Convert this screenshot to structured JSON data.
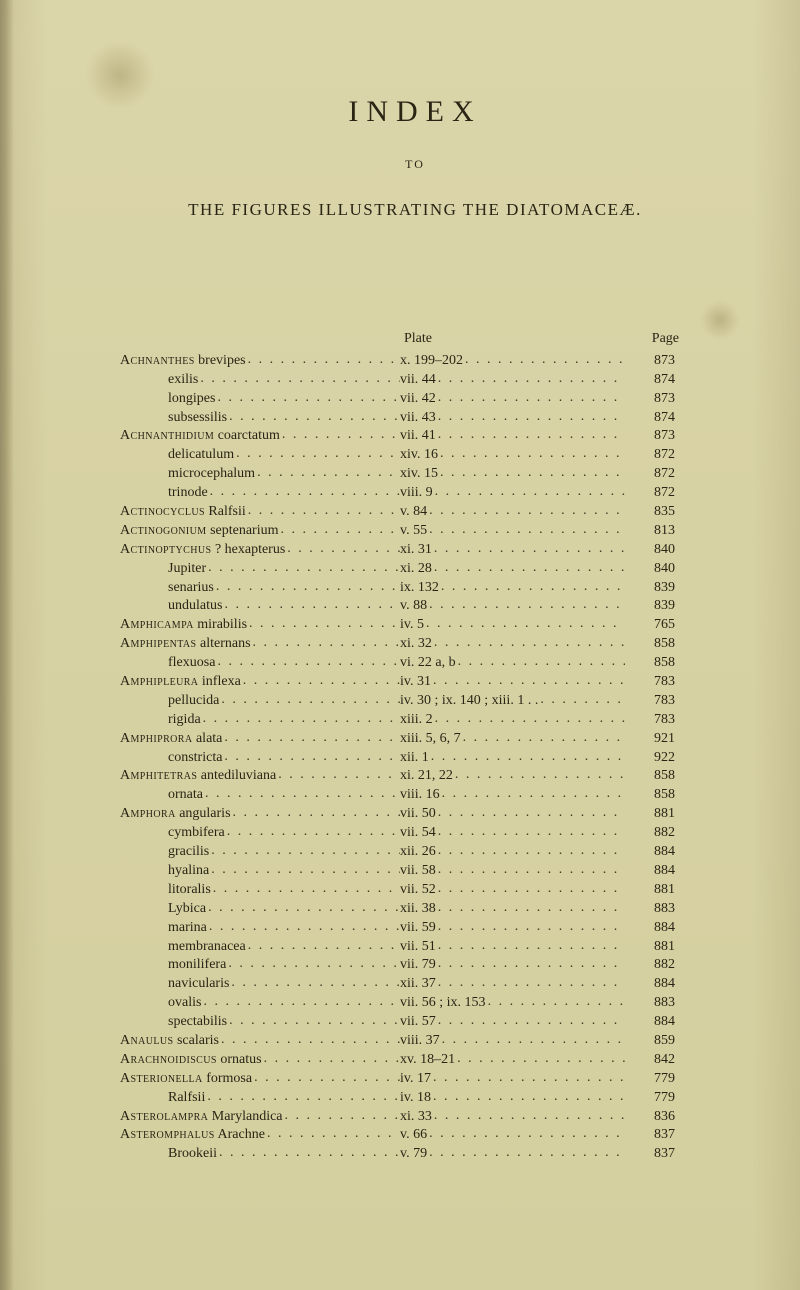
{
  "title": "INDEX",
  "to": "TO",
  "subtitle": "THE FIGURES ILLUSTRATING THE DIATOMACEÆ.",
  "headers": {
    "plate": "Plate",
    "page": "Page"
  },
  "entries": [
    {
      "name": "Achnanthes brevipes",
      "genus": true,
      "indent": 0,
      "plate": "x. 199–202",
      "page": "873"
    },
    {
      "name": "exilis",
      "indent": 1,
      "plate": "vii. 44",
      "page": "874"
    },
    {
      "name": "longipes",
      "indent": 1,
      "plate": "vii. 42",
      "page": "873"
    },
    {
      "name": "subsessilis",
      "indent": 1,
      "plate": "vii. 43",
      "page": "874"
    },
    {
      "name": "Achnanthidium coarctatum",
      "genus": true,
      "indent": 0,
      "plate": "vii. 41",
      "page": "873"
    },
    {
      "name": "delicatulum",
      "indent": 1,
      "plate": "xiv. 16",
      "page": "872"
    },
    {
      "name": "microcephalum",
      "indent": 1,
      "plate": "xiv. 15",
      "page": "872"
    },
    {
      "name": "trinode",
      "indent": 1,
      "plate": "viii. 9",
      "page": "872"
    },
    {
      "name": "Actinocyclus Ralfsii",
      "genus": true,
      "indent": 0,
      "plate": "v. 84",
      "page": "835"
    },
    {
      "name": "Actinogonium septenarium",
      "genus": true,
      "indent": 0,
      "plate": "v. 55",
      "page": "813"
    },
    {
      "name": "Actinoptychus ? hexapterus",
      "genus": true,
      "indent": 0,
      "plate": "xi. 31",
      "page": "840"
    },
    {
      "name": "Jupiter",
      "indent": 1,
      "plate": "xi. 28",
      "page": "840"
    },
    {
      "name": "senarius",
      "indent": 1,
      "plate": "ix. 132",
      "page": "839"
    },
    {
      "name": "undulatus",
      "indent": 1,
      "plate": "v. 88",
      "page": "839"
    },
    {
      "name": "Amphicampa mirabilis",
      "genus": true,
      "indent": 0,
      "plate": "iv. 5",
      "page": "765"
    },
    {
      "name": "Amphipentas alternans",
      "genus": true,
      "indent": 0,
      "plate": "xi. 32",
      "page": "858"
    },
    {
      "name": "flexuosa",
      "indent": 1,
      "plate": "vi. 22 a, b",
      "page": "858"
    },
    {
      "name": "Amphipleura inflexa",
      "genus": true,
      "indent": 0,
      "plate": "iv. 31",
      "page": "783"
    },
    {
      "name": "pellucida",
      "indent": 1,
      "plate": "iv. 30 ; ix. 140 ; xiii. 1 . .",
      "page": "783",
      "noLeaderPlate": true
    },
    {
      "name": "rigida",
      "indent": 1,
      "plate": "xiii. 2",
      "page": "783"
    },
    {
      "name": "Amphiprora alata",
      "genus": true,
      "indent": 0,
      "plate": "xiii. 5, 6, 7",
      "page": "921"
    },
    {
      "name": "constricta",
      "indent": 1,
      "plate": "xii. 1",
      "page": "922"
    },
    {
      "name": "Amphitetras antediluviana",
      "genus": true,
      "indent": 0,
      "plate": "xi. 21, 22",
      "page": "858"
    },
    {
      "name": "ornata",
      "indent": 1,
      "plate": "viii. 16",
      "page": "858"
    },
    {
      "name": "Amphora angularis",
      "genus": true,
      "indent": 0,
      "plate": "vii. 50",
      "page": "881"
    },
    {
      "name": "cymbifera",
      "indent": 1,
      "plate": "vii. 54",
      "page": "882"
    },
    {
      "name": "gracilis",
      "indent": 1,
      "plate": "xii. 26",
      "page": "884"
    },
    {
      "name": "hyalina",
      "indent": 1,
      "plate": "vii. 58",
      "page": "884"
    },
    {
      "name": "litoralis",
      "indent": 1,
      "plate": "vii. 52",
      "page": "881"
    },
    {
      "name": "Lybica",
      "indent": 1,
      "plate": "xii. 38",
      "page": "883"
    },
    {
      "name": "marina",
      "indent": 1,
      "plate": "vii. 59",
      "page": "884"
    },
    {
      "name": "membranacea",
      "indent": 1,
      "plate": "vii. 51",
      "page": "881"
    },
    {
      "name": "monilifera",
      "indent": 1,
      "plate": "vii. 79",
      "page": "882"
    },
    {
      "name": "navicularis",
      "indent": 1,
      "plate": "xii. 37",
      "page": "884"
    },
    {
      "name": "ovalis",
      "indent": 1,
      "plate": "vii. 56 ; ix. 153",
      "page": "883"
    },
    {
      "name": "spectabilis",
      "indent": 1,
      "plate": "vii. 57",
      "page": "884"
    },
    {
      "name": "Anaulus scalaris",
      "genus": true,
      "indent": 0,
      "plate": "viii. 37",
      "page": "859"
    },
    {
      "name": "Arachnoidiscus ornatus",
      "genus": true,
      "indent": 0,
      "plate": "xv. 18–21",
      "page": "842"
    },
    {
      "name": "Asterionella formosa",
      "genus": true,
      "indent": 0,
      "plate": "iv. 17",
      "page": "779"
    },
    {
      "name": "Ralfsii",
      "indent": 1,
      "plate": "iv. 18",
      "page": "779"
    },
    {
      "name": "Asterolampra Marylandica",
      "genus": true,
      "indent": 0,
      "plate": "xi. 33",
      "page": "836"
    },
    {
      "name": "Asteromphalus Arachne",
      "genus": true,
      "indent": 0,
      "plate": "v. 66",
      "page": "837"
    },
    {
      "name": "Brookeii",
      "indent": 1,
      "plate": "v. 79",
      "page": "837"
    }
  ]
}
